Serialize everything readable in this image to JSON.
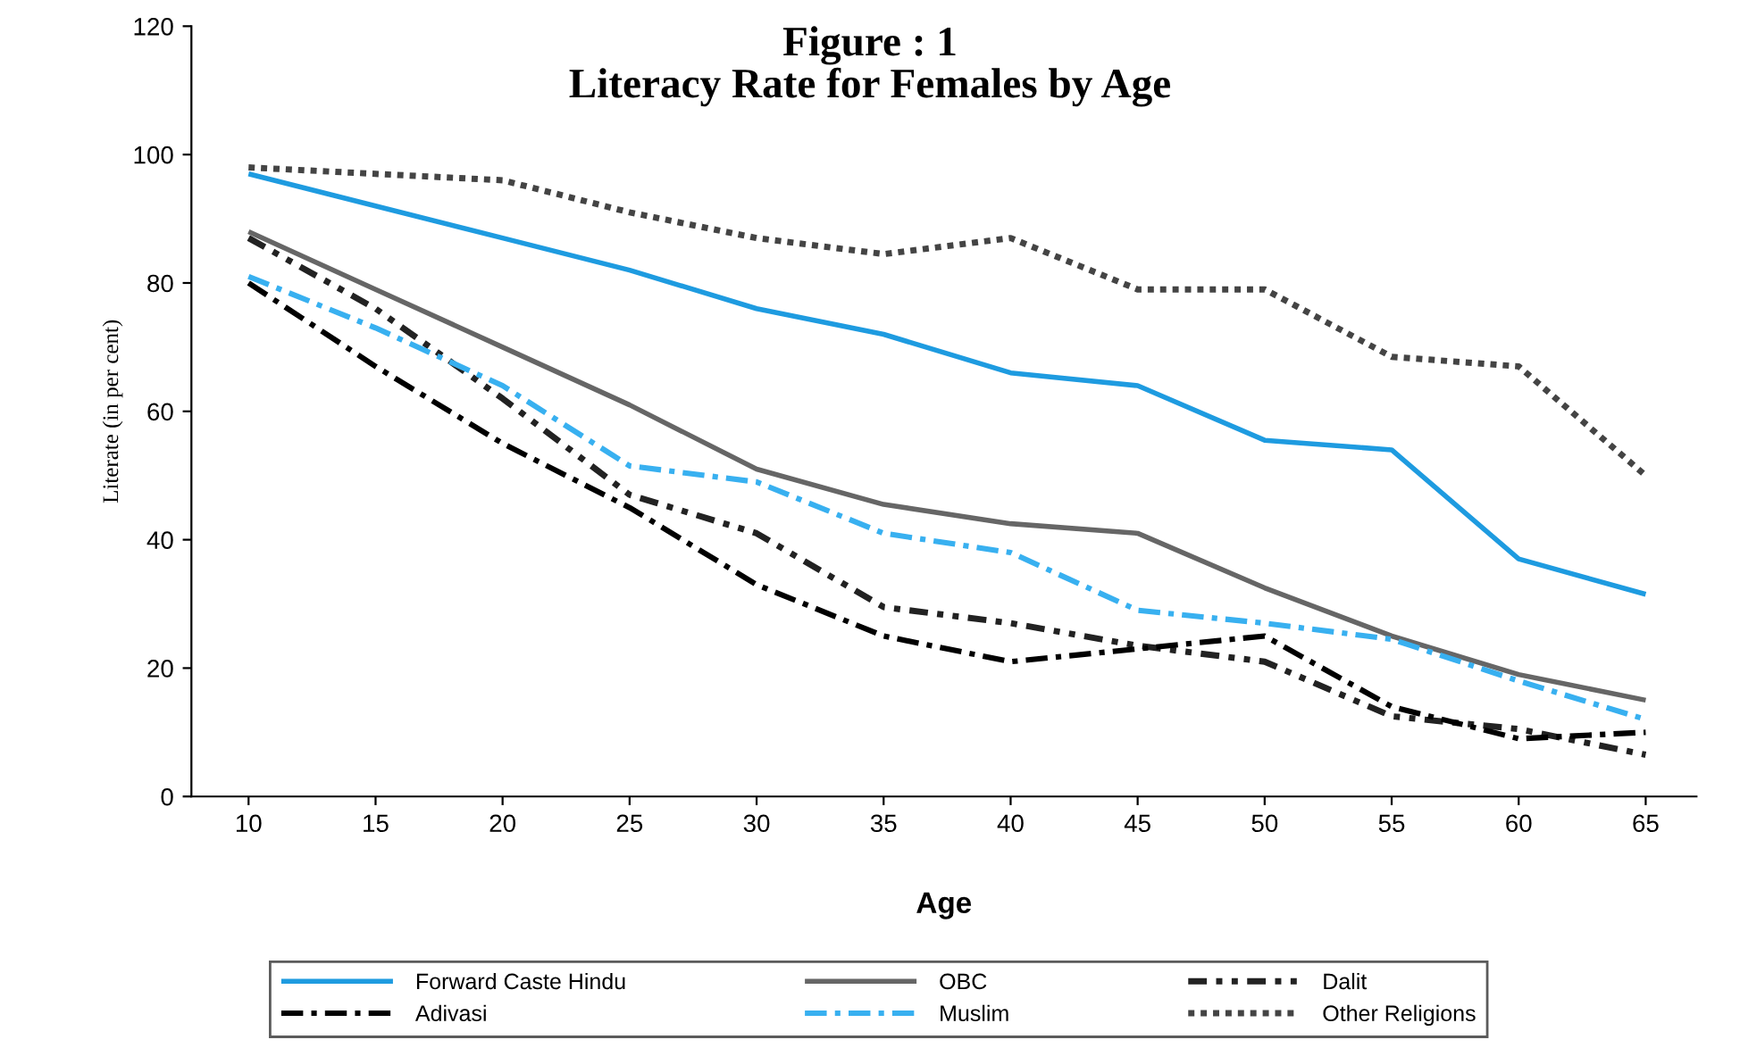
{
  "chart_data": {
    "type": "line",
    "title": "Figure : 1\nLiteracy Rate for Females by Age",
    "xlabel": "Age",
    "ylabel": "Literate (in per cent)",
    "categories": [
      "10",
      "15",
      "20",
      "25",
      "30",
      "35",
      "40",
      "45",
      "50",
      "55",
      "60",
      "65"
    ],
    "ylim": [
      0,
      120
    ],
    "yticks": [
      0,
      20,
      40,
      60,
      80,
      100,
      120
    ],
    "grid": false,
    "legend": "bottom",
    "marker": "none",
    "series": [
      {
        "name": "Forward Caste Hindu",
        "color": "#1e9be0",
        "line_style": "solid",
        "values": [
          97,
          92,
          87,
          82,
          76,
          72,
          66,
          64,
          55.5,
          54,
          37,
          31.5
        ]
      },
      {
        "name": "OBC",
        "color": "#666666",
        "line_style": "solid",
        "values": [
          88,
          79,
          70,
          61,
          51,
          45.5,
          42.5,
          41,
          32.5,
          25,
          19,
          15
        ]
      },
      {
        "name": "Dalit",
        "color": "#222222",
        "line_style": "dashdotdot",
        "values": [
          87,
          76,
          62,
          47,
          41,
          29.5,
          27,
          23.5,
          21,
          12.5,
          10.5,
          6.5
        ]
      },
      {
        "name": "Adivasi",
        "color": "#000000",
        "line_style": "dashdot",
        "values": [
          80,
          67,
          55,
          45,
          33,
          25,
          21,
          23,
          25,
          14,
          9,
          10
        ]
      },
      {
        "name": "Muslim",
        "color": "#38b0f0",
        "line_style": "dashdot",
        "values": [
          81,
          73,
          64,
          51.5,
          49,
          41,
          38,
          29,
          27,
          24.5,
          18,
          12
        ]
      },
      {
        "name": "Other Religions",
        "color": "#444444",
        "line_style": "dotted",
        "values": [
          98,
          97,
          96,
          91,
          87,
          84.5,
          87,
          79,
          79,
          68.5,
          67,
          50
        ]
      }
    ]
  }
}
